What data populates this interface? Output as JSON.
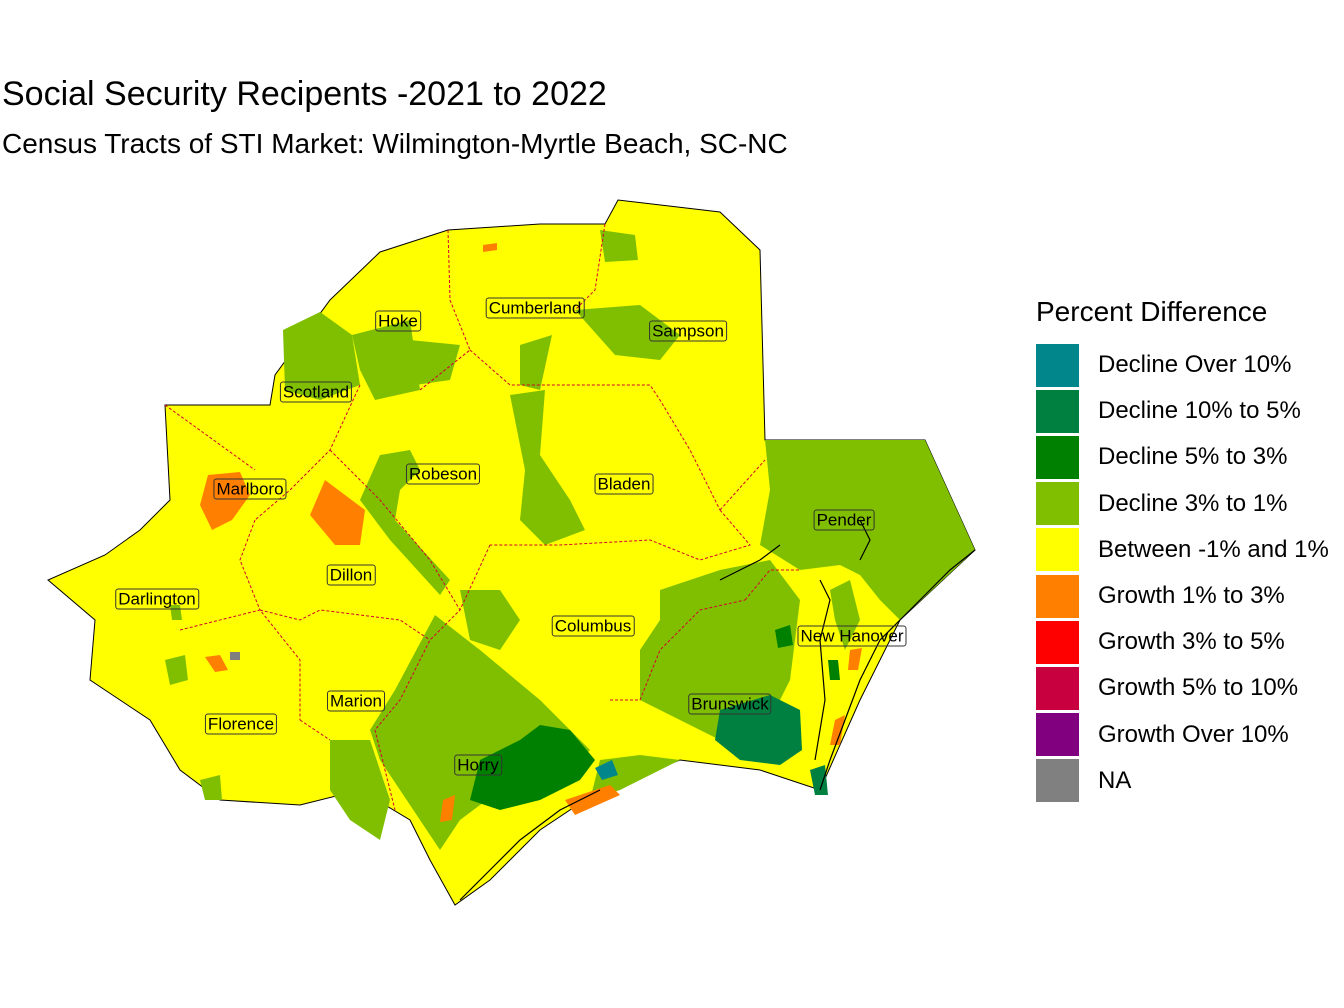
{
  "title": "Social Security Recipents -2021 to 2022",
  "subtitle": "Census Tracts of STI Market: Wilmington-Myrtle Beach, SC-NC",
  "legend": {
    "title": "Percent Difference",
    "items": [
      {
        "label": "Decline Over 10%",
        "color": "#00868B"
      },
      {
        "label": "Decline 10% to 5%",
        "color": "#008040"
      },
      {
        "label": "Decline 5% to 3%",
        "color": "#008000"
      },
      {
        "label": "Decline 3% to 1%",
        "color": "#7FBF00"
      },
      {
        "label": "Between -1% and 1%",
        "color": "#FFFF00"
      },
      {
        "label": "Growth 1% to 3%",
        "color": "#FF7F00"
      },
      {
        "label": "Growth 3% to 5%",
        "color": "#FF0000"
      },
      {
        "label": "Growth 5% to 10%",
        "color": "#C80040"
      },
      {
        "label": "Growth Over 10%",
        "color": "#800080"
      },
      {
        "label": "NA",
        "color": "#808080"
      }
    ]
  },
  "counties": [
    {
      "name": "Hoke"
    },
    {
      "name": "Cumberland"
    },
    {
      "name": "Sampson"
    },
    {
      "name": "Scotland"
    },
    {
      "name": "Robeson"
    },
    {
      "name": "Bladen"
    },
    {
      "name": "Marlboro"
    },
    {
      "name": "Pender"
    },
    {
      "name": "Dillon"
    },
    {
      "name": "Darlington"
    },
    {
      "name": "Columbus"
    },
    {
      "name": "New Hanover"
    },
    {
      "name": "Marion"
    },
    {
      "name": "Brunswick"
    },
    {
      "name": "Florence"
    },
    {
      "name": "Horry"
    }
  ]
}
